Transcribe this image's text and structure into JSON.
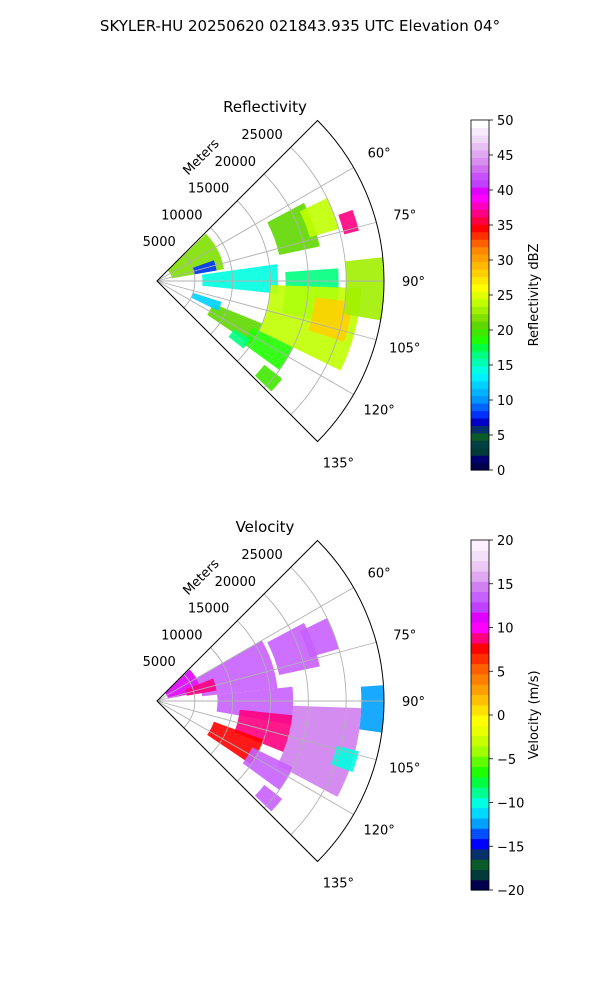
{
  "figure": {
    "suptitle": "SKYLER-HU  20250620  021843.935 UTC Elevation 04°"
  },
  "chart_data": [
    {
      "type": "heatmap",
      "projection": "polar-sector",
      "title": "Reflectivity",
      "field": "reflectivity",
      "range_axis_label": "Meters",
      "range_ticks": [
        "5000",
        "10000",
        "15000",
        "20000",
        "25000"
      ],
      "range_tick_values": [
        5000,
        10000,
        15000,
        20000,
        25000
      ],
      "range_max": 30000,
      "angle_ticks": [
        "60°",
        "75°",
        "90°",
        "105°",
        "120°",
        "135°"
      ],
      "angle_tick_values": [
        60,
        75,
        90,
        105,
        120,
        135
      ],
      "azimuth_range": [
        45,
        135
      ],
      "grid": true,
      "colorbar": {
        "label": "Reflectivity dBZ",
        "ticks": [
          "0",
          "5",
          "10",
          "15",
          "20",
          "25",
          "30",
          "35",
          "40",
          "45",
          "50"
        ],
        "min": 0,
        "max": 50,
        "colors": [
          "#00004c",
          "#00006e",
          "#003a3a",
          "#004040",
          "#0a5a2a",
          "#08306b",
          "#0000c8",
          "#0032ff",
          "#0064ff",
          "#0096ff",
          "#00b4ff",
          "#00d2ff",
          "#00f0ff",
          "#00ffe0",
          "#00ffb0",
          "#00ff80",
          "#00ff40",
          "#20ff00",
          "#40e800",
          "#60d800",
          "#80e000",
          "#a0f000",
          "#c0ff00",
          "#e0ff00",
          "#ffff00",
          "#ffe800",
          "#ffd000",
          "#ffb800",
          "#ffa000",
          "#ff8800",
          "#ff6000",
          "#ff3000",
          "#ff0000",
          "#ff0040",
          "#ff0080",
          "#ff00c0",
          "#ff00ff",
          "#e000ff",
          "#c040ff",
          "#c850ff",
          "#d070f0",
          "#d890f0",
          "#e0a8f0",
          "#e8c0f4",
          "#f0d8f8",
          "#f8ecfc",
          "#ffffff"
        ]
      },
      "echoes": [
        {
          "az1": 46,
          "az2": 80,
          "r1": 2000,
          "r2": 9000,
          "value": 22
        },
        {
          "az1": 62,
          "az2": 78,
          "r1": 16500,
          "r2": 22000,
          "value": 21
        },
        {
          "az1": 64,
          "az2": 74,
          "r1": 21000,
          "r2": 25000,
          "value": 24
        },
        {
          "az1": 70,
          "az2": 76,
          "r1": 25500,
          "r2": 27500,
          "value": 37
        },
        {
          "az1": 82,
          "az2": 96,
          "r1": 6000,
          "r2": 16000,
          "value": 14
        },
        {
          "az1": 86,
          "az2": 104,
          "r1": 17000,
          "r2": 24000,
          "value": 17
        },
        {
          "az1": 92,
          "az2": 116,
          "r1": 15000,
          "r2": 27000,
          "value": 24
        },
        {
          "az1": 96,
          "az2": 108,
          "r1": 21000,
          "r2": 26000,
          "value": 28
        },
        {
          "az1": 84,
          "az2": 100,
          "r1": 25000,
          "r2": 30000,
          "value": 23
        },
        {
          "az1": 112,
          "az2": 124,
          "r1": 8000,
          "r2": 15000,
          "value": 21
        },
        {
          "az1": 116,
          "az2": 126,
          "r1": 14000,
          "r2": 20000,
          "value": 19
        },
        {
          "az1": 108,
          "az2": 116,
          "r1": 5000,
          "r2": 9000,
          "value": 12
        },
        {
          "az1": 70,
          "az2": 80,
          "r1": 5000,
          "r2": 8000,
          "value": 8
        },
        {
          "az1": 128,
          "az2": 134,
          "r1": 18000,
          "r2": 21000,
          "value": 20
        },
        {
          "az1": 122,
          "az2": 128,
          "r1": 12000,
          "r2": 14500,
          "value": 16
        }
      ]
    },
    {
      "type": "heatmap",
      "projection": "polar-sector",
      "title": "Velocity",
      "field": "velocity",
      "range_axis_label": "Meters",
      "range_ticks": [
        "5000",
        "10000",
        "15000",
        "20000",
        "25000"
      ],
      "range_tick_values": [
        5000,
        10000,
        15000,
        20000,
        25000
      ],
      "range_max": 30000,
      "angle_ticks": [
        "60°",
        "75°",
        "90°",
        "105°",
        "120°",
        "135°"
      ],
      "angle_tick_values": [
        60,
        75,
        90,
        105,
        120,
        135
      ],
      "azimuth_range": [
        45,
        135
      ],
      "grid": true,
      "colorbar": {
        "label": "Velocity (m/s)",
        "ticks": [
          "−20",
          "−15",
          "−10",
          "−5",
          "0",
          "5",
          "10",
          "15",
          "20"
        ],
        "min": -20,
        "max": 20,
        "colors": [
          "#00004c",
          "#003a3a",
          "#0a5a2a",
          "#08306b",
          "#0000ff",
          "#0050ff",
          "#00a0ff",
          "#00d8ff",
          "#00ffe0",
          "#00ff90",
          "#00ff40",
          "#20ff00",
          "#60ff00",
          "#a0ff00",
          "#c8ff00",
          "#eaff00",
          "#ffff00",
          "#ffe000",
          "#ffc000",
          "#ffa000",
          "#ff8000",
          "#ff6000",
          "#ff3000",
          "#ff0000",
          "#ff0080",
          "#ff00ff",
          "#e000ff",
          "#c040ff",
          "#c860ff",
          "#d080f0",
          "#e0a8f0",
          "#ecc8f4",
          "#f4e0f8",
          "#fff0ff"
        ]
      },
      "echoes": [
        {
          "az1": 46,
          "az2": 78,
          "r1": 1500,
          "r2": 6000,
          "value": 11
        },
        {
          "az1": 60,
          "az2": 84,
          "r1": 6000,
          "r2": 16000,
          "value": 14
        },
        {
          "az1": 62,
          "az2": 78,
          "r1": 16500,
          "r2": 22000,
          "value": 14
        },
        {
          "az1": 64,
          "az2": 74,
          "r1": 21000,
          "r2": 25000,
          "value": 13
        },
        {
          "az1": 84,
          "az2": 100,
          "r1": 8000,
          "r2": 18000,
          "value": 14
        },
        {
          "az1": 96,
          "az2": 112,
          "r1": 11000,
          "r2": 18000,
          "value": 9
        },
        {
          "az1": 92,
          "az2": 118,
          "r1": 18000,
          "r2": 27000,
          "value": 15
        },
        {
          "az1": 86,
          "az2": 98,
          "r1": 27000,
          "r2": 30000,
          "value": -12
        },
        {
          "az1": 110,
          "az2": 124,
          "r1": 8000,
          "r2": 15000,
          "value": 8
        },
        {
          "az1": 116,
          "az2": 126,
          "r1": 14000,
          "r2": 20000,
          "value": 13
        },
        {
          "az1": 68,
          "az2": 80,
          "r1": 4000,
          "r2": 8000,
          "value": 9
        },
        {
          "az1": 104,
          "az2": 110,
          "r1": 24500,
          "r2": 27500,
          "value": -10
        },
        {
          "az1": 128,
          "az2": 134,
          "r1": 18000,
          "r2": 21000,
          "value": 14
        }
      ]
    }
  ]
}
